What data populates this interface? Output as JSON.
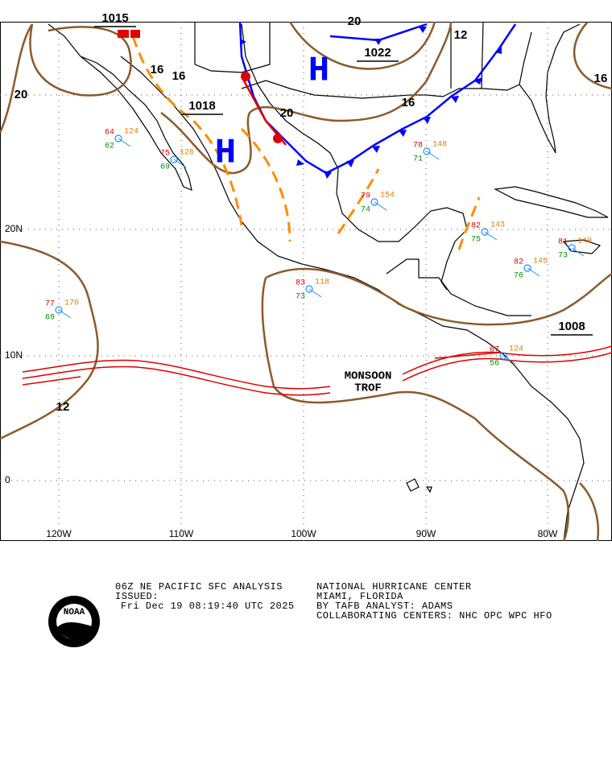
{
  "map": {
    "highs": [
      "H",
      "H"
    ],
    "isobar_labels": [
      "1015",
      "16",
      "16",
      "1018",
      "20",
      "20",
      "1022",
      "12",
      "16",
      "20",
      "1008",
      "12",
      "16"
    ],
    "lat_labels": [
      "20N",
      "10N",
      "0"
    ],
    "lon_labels": [
      "120W",
      "110W",
      "100W",
      "90W",
      "80W"
    ],
    "monsoon_label": [
      "MONSOON",
      "TROF"
    ],
    "stations": [
      {
        "temp": 77,
        "pressure": 170,
        "dew": 69
      },
      {
        "temp": 64,
        "pressure": 124,
        "dew": 62
      },
      {
        "temp": 75,
        "pressure": 126,
        "dew": 69
      },
      {
        "temp": 79,
        "pressure": 154,
        "dew": 74
      },
      {
        "temp": 78,
        "pressure": 148,
        "dew": 71
      },
      {
        "temp": 82,
        "pressure": 143,
        "dew": 75
      },
      {
        "temp": 81,
        "pressure": 149,
        "dew": 73
      },
      {
        "temp": 82,
        "pressure": 145,
        "dew": 76
      },
      {
        "temp": 83,
        "pressure": 118,
        "dew": 73
      },
      {
        "temp": 67,
        "pressure": 124,
        "dew": 56
      }
    ],
    "footer": {
      "left": [
        "06Z NE PACIFIC SFC ANALYSIS",
        "ISSUED:",
        "Fri Dec 19 08:19:40 UTC 2025"
      ],
      "right": [
        "NATIONAL HURRICANE CENTER",
        "MIAMI, FLORIDA",
        "BY TAFB ANALYST: ADAMS",
        "COLLABORATING CENTERS: NHC OPC WPC HFO"
      ],
      "logo": "NOAA"
    }
  }
}
